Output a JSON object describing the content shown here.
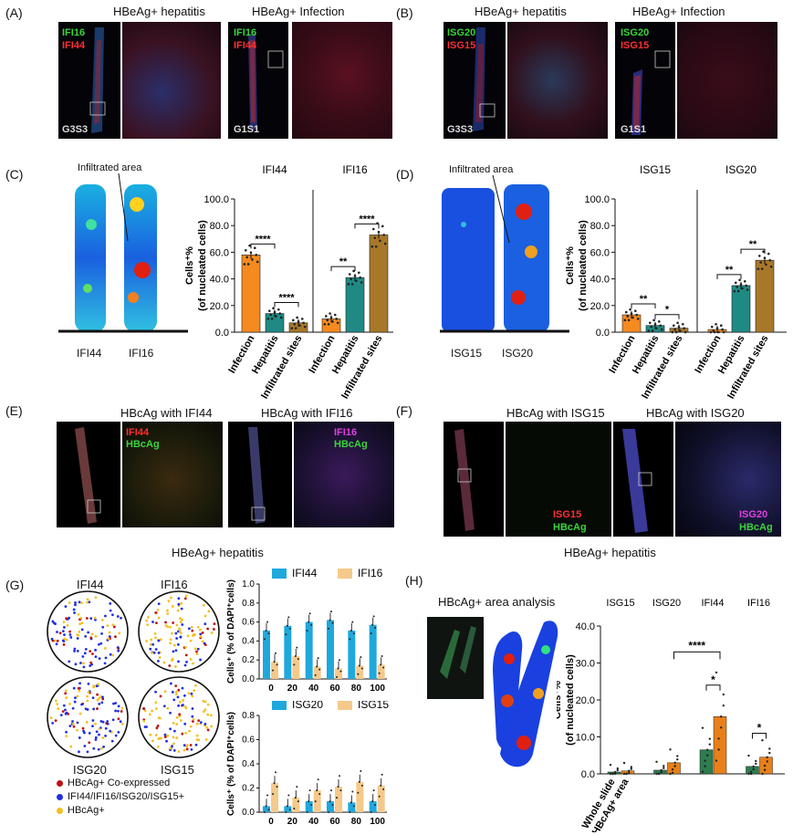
{
  "panels": {
    "A": {
      "label": "(A)",
      "title_left": "HBeAg+ hepatitis",
      "title_right": "HBeAg+ Infection",
      "markers_left": [
        "IFI16",
        "IFI44"
      ],
      "markers_right": [
        "IFI16",
        "IFI44"
      ],
      "sample_left": "G3S3",
      "sample_right": "G1S1"
    },
    "B": {
      "label": "(B)",
      "title_left": "HBeAg+ hepatitis",
      "title_right": "HBeAg+ Infection",
      "markers_left": [
        "ISG20",
        "ISG15"
      ],
      "markers_right": [
        "ISG20",
        "ISG15"
      ],
      "sample_left": "G3S3",
      "sample_right": "G1S1"
    },
    "C": {
      "label": "(C)",
      "annotation": "Infiltrated area",
      "heatmap_labels": [
        "IFI44",
        "IFI16"
      ]
    },
    "D": {
      "label": "(D)",
      "annotation": "Infiltrated area",
      "heatmap_labels": [
        "ISG15",
        "ISG20"
      ]
    },
    "E": {
      "label": "(E)",
      "title_left": "HBcAg with IFI44",
      "title_right": "HBcAg with IFI16",
      "markers_left": [
        "IFI44",
        "HBcAg"
      ],
      "markers_right": [
        "IFI16",
        "HBcAg"
      ],
      "caption": "HBeAg+ hepatitis"
    },
    "F": {
      "label": "(F)",
      "title_left": "HBcAg with ISG15",
      "title_right": "HBcAg with ISG20",
      "markers_left": [
        "ISG15",
        "HBcAg"
      ],
      "markers_right": [
        "ISG20",
        "HBcAg"
      ],
      "caption": "HBeAg+ hepatitis"
    },
    "G": {
      "label": "(G)",
      "circle_labels": [
        "IFI44",
        "IFI16",
        "ISG20",
        "ISG15"
      ],
      "legend": [
        "HBcAg+ Co-expressed",
        "IFI44/IFI16/ISG20/ISG15+",
        "HBcAg+"
      ]
    },
    "H": {
      "label": "(H)",
      "title": "HBcAg+ area analysis"
    }
  },
  "colors": {
    "orange": "#f58a1f",
    "teal": "#1f8a84",
    "brown": "#a8782a",
    "blue": "#1fa8dc",
    "peach": "#f5c98a",
    "green": "#2e7d4f",
    "darkorange": "#e8801a"
  },
  "chart_data": [
    {
      "id": "C",
      "type": "bar",
      "groups": [
        {
          "name": "IFI44",
          "categories": [
            "Infection",
            "Hepatitis",
            "Infiltrated sites"
          ],
          "values": [
            58,
            14,
            7
          ]
        },
        {
          "name": "IFI16",
          "categories": [
            "Infection",
            "Hepatitis",
            "Infiltrated sites"
          ],
          "values": [
            10,
            41,
            73
          ]
        }
      ],
      "ylabel": "Cells⁺%\n(of nucleated cells)",
      "ylim": [
        0,
        100
      ],
      "yticks": [
        "0.0",
        "20.0",
        "40.0",
        "60.0",
        "80.0",
        "100.0"
      ],
      "significance": [
        {
          "group": 0,
          "from": 0,
          "to": 1,
          "label": "****"
        },
        {
          "group": 0,
          "from": 1,
          "to": 2,
          "label": "****"
        },
        {
          "group": 1,
          "from": 0,
          "to": 1,
          "label": "**"
        },
        {
          "group": 1,
          "from": 1,
          "to": 2,
          "label": "****"
        }
      ]
    },
    {
      "id": "D",
      "type": "bar",
      "groups": [
        {
          "name": "ISG15",
          "categories": [
            "Infection",
            "Hepatitis",
            "Infiltrated sites"
          ],
          "values": [
            13,
            5,
            3
          ]
        },
        {
          "name": "ISG20",
          "categories": [
            "Infection",
            "Hepatitis",
            "Infiltrated sites"
          ],
          "values": [
            2,
            35,
            54
          ]
        }
      ],
      "ylabel": "Cells⁺%\n(of nucleated cells)",
      "ylim": [
        0,
        100
      ],
      "yticks": [
        "0.0",
        "20.0",
        "40.0",
        "60.0",
        "80.0",
        "100.0"
      ],
      "significance": [
        {
          "group": 0,
          "from": 0,
          "to": 1,
          "label": "**"
        },
        {
          "group": 0,
          "from": 1,
          "to": 2,
          "label": "*"
        },
        {
          "group": 1,
          "from": 0,
          "to": 1,
          "label": "**"
        },
        {
          "group": 1,
          "from": 1,
          "to": 2,
          "label": "**"
        }
      ]
    },
    {
      "id": "G-top",
      "type": "bar",
      "categories": [
        "0",
        "20",
        "40",
        "60",
        "80",
        "100"
      ],
      "series": [
        {
          "name": "IFI44",
          "values": [
            0.51,
            0.56,
            0.6,
            0.62,
            0.51,
            0.57
          ]
        },
        {
          "name": "IFI16",
          "values": [
            0.18,
            0.24,
            0.13,
            0.11,
            0.14,
            0.15
          ]
        }
      ],
      "ylabel": "Cells⁺ (% of DAPI⁺cells)",
      "ylim": [
        0,
        1.0
      ],
      "yticks": [
        "0.0",
        "0.2",
        "0.4",
        "0.6",
        "0.8",
        "1.0"
      ]
    },
    {
      "id": "G-bottom",
      "type": "bar",
      "categories": [
        "0",
        "20",
        "40",
        "60",
        "80",
        "100"
      ],
      "series": [
        {
          "name": "ISG20",
          "values": [
            0.05,
            0.05,
            0.09,
            0.09,
            0.08,
            0.09
          ]
        },
        {
          "name": "ISG15",
          "values": [
            0.24,
            0.12,
            0.18,
            0.21,
            0.25,
            0.22
          ]
        }
      ],
      "ylabel": "Cells⁺ (% of DAPI⁺cells)",
      "ylim": [
        0,
        0.8
      ],
      "yticks": [
        "0.0",
        "0.2",
        "0.4",
        "0.6",
        "0.8"
      ]
    },
    {
      "id": "H",
      "type": "bar",
      "groups": [
        "ISG15",
        "ISG20",
        "IFI44",
        "IFI16"
      ],
      "series": [
        {
          "name": "Whole slide",
          "values": [
            0.5,
            1.0,
            6.5,
            2.0
          ]
        },
        {
          "name": "HBcAg+ area",
          "values": [
            0.8,
            3.0,
            15.5,
            4.5
          ]
        }
      ],
      "ylabel": "Cells⁺%\n(of nucleated cells)",
      "ylim": [
        0,
        40
      ],
      "yticks": [
        "0.0",
        "10.0",
        "20.0",
        "30.0",
        "40.0"
      ],
      "significance": [
        {
          "label": "****"
        },
        {
          "label": "*"
        },
        {
          "label": "*"
        }
      ]
    }
  ]
}
